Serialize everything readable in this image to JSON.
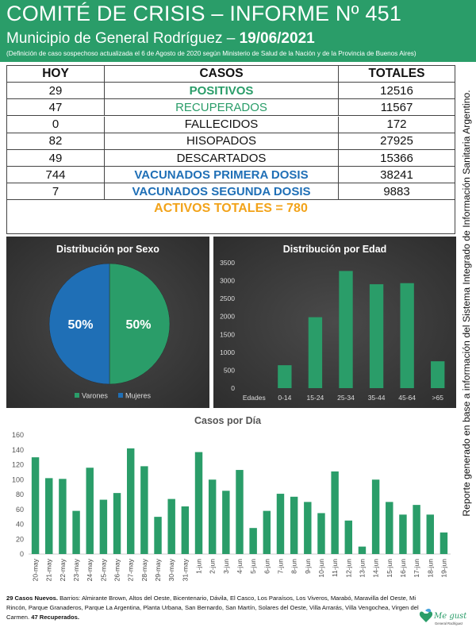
{
  "header": {
    "title": "COMITÉ DE CRISIS – INFORME Nº 451",
    "subtitle_prefix": "Municipio de General Rodríguez – ",
    "subtitle_date": "19/06/2021",
    "note": "(Definición de caso sospechoso actualizada el 6 de Agosto de 2020 según Ministerio de Salud de la Nación y de la Provincia de Buenos Aires)"
  },
  "table": {
    "headers": [
      "HOY",
      "CASOS",
      "TOTALES"
    ],
    "rows": [
      {
        "hoy": "29",
        "label": "POSITIVOS",
        "total": "12516",
        "style": "green-b"
      },
      {
        "hoy": "47",
        "label": "RECUPERADOS",
        "total": "11567",
        "style": "green"
      },
      {
        "hoy": "0",
        "label": "FALLECIDOS",
        "total": "172",
        "style": ""
      },
      {
        "hoy": "82",
        "label": "HISOPADOS",
        "total": "27925",
        "style": ""
      },
      {
        "hoy": "49",
        "label": "DESCARTADOS",
        "total": "15366",
        "style": ""
      },
      {
        "hoy": "744",
        "label": "VACUNADOS PRIMERA DOSIS",
        "total": "38241",
        "style": "blue-b"
      },
      {
        "hoy": "7",
        "label": "VACUNADOS SEGUNDA DOSIS",
        "total": "9883",
        "style": "blue-b"
      }
    ],
    "activos": "ACTIVOS TOTALES = 780"
  },
  "colors": {
    "green": "#2a9d69",
    "blue": "#1f6fb6",
    "orange": "#f2a31a"
  },
  "side_note": "Reporte generado en base a información del Sistema Integrado de Información Sanitaria Argentino.",
  "chart_data": [
    {
      "type": "pie",
      "title": "Distribución por Sexo",
      "labels": [
        "Varones",
        "Mujeres"
      ],
      "values": [
        50,
        50
      ],
      "data_labels": [
        "50%",
        "50%"
      ],
      "colors": [
        "#2a9d69",
        "#1f6fb6"
      ],
      "legend": "bottom"
    },
    {
      "type": "bar",
      "title": "Distribución por Edad",
      "first_label": "Edades",
      "categories": [
        "0-14",
        "15-24",
        "25-34",
        "35-44",
        "45-64",
        ">65"
      ],
      "values": [
        640,
        1980,
        3270,
        2900,
        2930,
        750
      ],
      "ylim": [
        0,
        3500
      ],
      "yticks": [
        0,
        500,
        1000,
        1500,
        2000,
        2500,
        3000,
        3500
      ],
      "color": "#2a9d69"
    },
    {
      "type": "bar",
      "title": "Casos por Día",
      "categories": [
        "20-may",
        "21-may",
        "22-may",
        "23-may",
        "24-may",
        "25-may",
        "26-may",
        "27-may",
        "28-may",
        "29-may",
        "30-may",
        "31-may",
        "1-jun",
        "2-jun",
        "3-jun",
        "4-jun",
        "5-jun",
        "6-jun",
        "7-jun",
        "8-jun",
        "9-jun",
        "10-jun",
        "11-jun",
        "12-jun",
        "13-jun",
        "14-jun",
        "15-jun",
        "16-jun",
        "17-jun",
        "18-jun",
        "19-jun"
      ],
      "values": [
        130,
        102,
        101,
        58,
        116,
        73,
        82,
        142,
        118,
        50,
        74,
        64,
        137,
        100,
        85,
        113,
        35,
        58,
        81,
        77,
        70,
        55,
        111,
        45,
        10,
        100,
        70,
        53,
        66,
        53,
        29
      ],
      "ylim": [
        0,
        160
      ],
      "yticks": [
        0,
        20,
        40,
        60,
        80,
        100,
        120,
        140,
        160
      ],
      "color": "#2a9d69"
    }
  ],
  "footer": {
    "nuevos_bold": "29 Casos Nuevos.",
    "barrios": " Barrios: Almirante Brown, Altos del Oeste, Bicentenario, Dávila, El Casco, Los Paraísos, Los Viveros, Marabó, Maravilla del Oeste, Mi Rincón, Parque Granaderos, Parque La Argentina, Planta Urbana, San Bernardo, San Martín, Solares del Oeste, Villa Arrarás, Villa Vengochea, Virgen del Carmen. ",
    "recuperados_bold": "47 Recuperados."
  },
  "logo": {
    "name": "Me gusta",
    "sub": "General Rodríguez"
  }
}
